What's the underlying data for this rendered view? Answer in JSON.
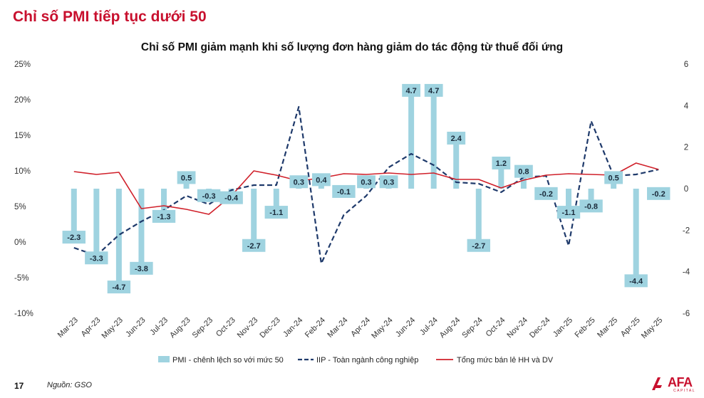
{
  "heading": "Chỉ số PMI tiếp tục dưới 50",
  "footer": {
    "page_number": "17",
    "source": "Nguồn: GSO"
  },
  "logo": {
    "text": "AFA",
    "subtext": "CAPITAL"
  },
  "colors": {
    "heading": "#c8102e",
    "pmi_bar": "#9fd3e0",
    "iip_line": "#1f3a6b",
    "retail_line": "#d0202a",
    "label_box": "#9fd3e0"
  },
  "chart_data": {
    "type": "bar",
    "title": "Chỉ số PMI giảm mạnh khi số lượng đơn hàng giảm do tác động từ thuế đối ứng",
    "categories": [
      "Mar-23",
      "Apr-23",
      "May-23",
      "Jun-23",
      "Jul-23",
      "Aug-23",
      "Sep-23",
      "Oct-23",
      "Nov-23",
      "Dec-23",
      "Jan-24",
      "Feb-24",
      "Mar-24",
      "Apr-24",
      "May-24",
      "Jun-24",
      "Jul-24",
      "Aug-24",
      "Sep-24",
      "Oct-24",
      "Nov-24",
      "Dec-24",
      "Jan-25",
      "Feb-25",
      "Mar-25",
      "Apr-25",
      "May-25"
    ],
    "left_axis": {
      "ticks": [
        "25%",
        "20%",
        "15%",
        "10%",
        "5%",
        "0%",
        "-5%",
        "-10%"
      ],
      "ylim": [
        -10,
        25
      ]
    },
    "right_axis": {
      "ticks": [
        "6",
        "4",
        "2",
        "0",
        "-2",
        "-4",
        "-6"
      ],
      "ylim": [
        -6,
        6
      ]
    },
    "legend_position": "bottom",
    "series": [
      {
        "name": "PMI - chênh lệch so với mức 50",
        "type": "bar",
        "axis": "right",
        "values": [
          -2.3,
          -3.3,
          -4.7,
          -3.8,
          -1.3,
          0.5,
          -0.3,
          -0.4,
          -2.7,
          -1.1,
          0.3,
          0.4,
          -0.1,
          0.3,
          0.3,
          4.7,
          4.7,
          2.4,
          -2.7,
          1.2,
          0.8,
          -0.2,
          -1.1,
          -0.8,
          0.5,
          -4.4,
          -0.2
        ],
        "labels": [
          "-2.3",
          "-3.3",
          "-4.7",
          "-3.8",
          "-1.3",
          "0.5",
          "-0.3",
          "-0.4",
          "-2.7",
          "-1.1",
          "0.3",
          "0.4",
          "-0.1",
          "0.3",
          "0.3",
          "4.7",
          "4.7",
          "2.4",
          "-2.7",
          "1.2",
          "0.8",
          "-0.2",
          "-1.1",
          "-0.8",
          "0.5",
          "-4.4",
          "-0.2"
        ]
      },
      {
        "name": "IIP - Toàn ngành công nghiệp",
        "type": "line",
        "style": "dashed",
        "axis": "left",
        "values": [
          -0.8,
          -1.9,
          1.0,
          2.9,
          4.5,
          6.5,
          5.3,
          7.3,
          8.0,
          8.0,
          19.0,
          -3.0,
          3.8,
          6.5,
          10.5,
          12.4,
          10.8,
          8.4,
          8.2,
          7.0,
          9.1,
          9.3,
          -0.5,
          17.0,
          9.3,
          9.5,
          10.2
        ]
      },
      {
        "name": "Tổng mức bán lẻ HH và DV",
        "type": "line",
        "style": "solid",
        "axis": "left",
        "values": [
          9.9,
          9.5,
          9.8,
          4.7,
          5.1,
          4.6,
          3.9,
          6.5,
          10.0,
          9.4,
          8.6,
          9.0,
          9.6,
          9.5,
          9.7,
          9.5,
          9.7,
          8.8,
          8.8,
          7.6,
          8.7,
          9.4,
          9.6,
          9.5,
          9.4,
          11.1,
          10.2
        ]
      }
    ]
  }
}
